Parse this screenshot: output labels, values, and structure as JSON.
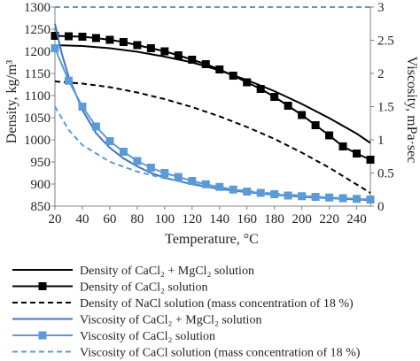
{
  "chart_data": {
    "type": "line",
    "xlabel": "Temperature, °C",
    "ylabel": "Density, kg/m³",
    "y2label": "Viscosity, mPa·sec",
    "xlim": [
      20,
      250
    ],
    "ylim": [
      850,
      1300
    ],
    "y2lim": [
      0,
      3
    ],
    "xticks": [
      20,
      40,
      60,
      80,
      100,
      120,
      140,
      160,
      180,
      200,
      220,
      240
    ],
    "yticks": [
      850,
      900,
      950,
      1000,
      1050,
      1100,
      1150,
      1200,
      1250,
      1300
    ],
    "y2ticks": [
      0,
      0.5,
      1,
      1.5,
      2,
      2.5,
      3
    ],
    "grid": false,
    "legend_position": "bottom",
    "colors": {
      "black": "#000000",
      "blue": "#4472c4",
      "light_blue": "#5b9bd5"
    },
    "series": [
      {
        "name": "Density of CaCl₂ + MgCl₂ solution",
        "axis": "left",
        "color": "#000000",
        "style": "solid",
        "marker": null,
        "x": [
          20,
          40,
          60,
          80,
          100,
          120,
          140,
          160,
          180,
          200,
          220,
          240,
          250
        ],
        "y": [
          1214,
          1212,
          1207,
          1199,
          1188,
          1175,
          1157,
          1135,
          1110,
          1081,
          1049,
          1014,
          993
        ]
      },
      {
        "name": "Density of CaCl₂ solution",
        "axis": "left",
        "color": "#000000",
        "style": "solid",
        "marker": "square",
        "x": [
          20,
          30,
          40,
          50,
          60,
          70,
          80,
          90,
          100,
          110,
          120,
          130,
          140,
          150,
          160,
          170,
          180,
          190,
          200,
          210,
          220,
          230,
          240,
          250
        ],
        "y": [
          1235,
          1234,
          1233,
          1230,
          1226,
          1221,
          1214,
          1207,
          1200,
          1191,
          1181,
          1171,
          1159,
          1145,
          1130,
          1115,
          1097,
          1077,
          1056,
          1033,
          1010,
          985,
          969,
          955
        ]
      },
      {
        "name": "Density of NaCl solution (mass concentration of 18 %)",
        "axis": "left",
        "color": "#000000",
        "style": "dashed",
        "marker": null,
        "x": [
          20,
          40,
          60,
          80,
          100,
          120,
          140,
          160,
          180,
          200,
          220,
          240,
          250
        ],
        "y": [
          1132,
          1127,
          1119,
          1107,
          1092,
          1074,
          1053,
          1029,
          1002,
          971,
          937,
          899,
          880
        ]
      },
      {
        "name": "Viscosity of CaCl₂ + MgCl₂ solution",
        "axis": "right",
        "color": "#4472c4",
        "style": "solid",
        "marker": null,
        "x": [
          20,
          25,
          30,
          40,
          50,
          60,
          70,
          80,
          90,
          100,
          120,
          140,
          160,
          180,
          200,
          220,
          240,
          250
        ],
        "y": [
          2.75,
          2.3,
          1.95,
          1.45,
          1.1,
          0.88,
          0.72,
          0.6,
          0.5,
          0.43,
          0.33,
          0.26,
          0.21,
          0.17,
          0.14,
          0.12,
          0.1,
          0.09
        ]
      },
      {
        "name": "Viscosity of CaCl₂ solution",
        "axis": "right",
        "color": "#5b9bd5",
        "style": "solid",
        "marker": "square",
        "x": [
          20,
          30,
          40,
          50,
          60,
          70,
          80,
          90,
          100,
          110,
          120,
          130,
          140,
          150,
          160,
          170,
          180,
          190,
          200,
          210,
          220,
          230,
          240,
          250
        ],
        "y": [
          2.38,
          1.89,
          1.5,
          1.2,
          0.98,
          0.82,
          0.68,
          0.58,
          0.5,
          0.44,
          0.38,
          0.33,
          0.29,
          0.25,
          0.22,
          0.2,
          0.18,
          0.16,
          0.15,
          0.14,
          0.13,
          0.12,
          0.11,
          0.1
        ]
      },
      {
        "name": "Viscosity of CaCl solution (mass concentration of 18 %)",
        "axis": "right",
        "color": "#5b9bd5",
        "style": "dashed",
        "marker": null,
        "x": [
          20,
          30,
          40,
          60,
          80,
          100,
          120,
          140,
          160,
          180,
          200,
          220,
          240,
          250
        ],
        "y": [
          1.5,
          1.15,
          0.92,
          0.67,
          0.52,
          0.42,
          0.34,
          0.28,
          0.23,
          0.19,
          0.16,
          0.13,
          0.11,
          0.1
        ]
      },
      {
        "name": "",
        "axis": "right",
        "color": "#5b9bd5",
        "style": "dashed",
        "marker": null,
        "x": [
          20,
          250
        ],
        "y": [
          3,
          3
        ]
      }
    ]
  }
}
